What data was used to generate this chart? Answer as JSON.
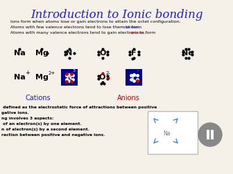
{
  "title": "Introduction to Ionic bonding",
  "title_color": "#1a1aff",
  "bg_color": "#f5f0e8",
  "line1": "Ions form when atoms lose or gain electrons to attain the octet configuration.",
  "line2a": "Atoms with few valence electrons tend to lose them to form ",
  "line2b": "cations.",
  "line2b_color": "#1a1aff",
  "line3a": "Atoms with many valence electrons tend to gain electrons to form ",
  "line3b": "anions.",
  "line3b_color": "#cc0000",
  "cations_label": "Cations",
  "anions_label": "Anions",
  "bottom_text": [
    " defined as the electrostatic force of attractions between positive",
    "gative ions.",
    "ng involves 3 aspects:",
    " of an electron(s) by one element.",
    "n of electron(s) by a second element.",
    "raction between positive and negative ions."
  ],
  "box_color": "#00008b",
  "dot_red": "#cc0000",
  "pause_color": "#888888"
}
